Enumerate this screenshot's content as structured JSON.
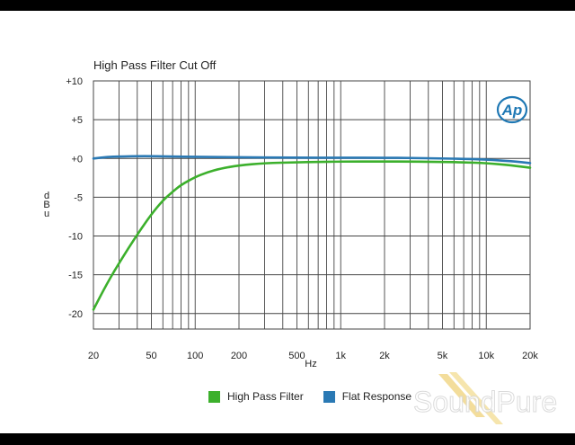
{
  "chart_data": {
    "type": "line",
    "title": "High Pass Filter Cut Off",
    "xlabel": "Hz",
    "ylabel": "dBu",
    "xscale": "log",
    "xlim": [
      20,
      20000
    ],
    "ylim": [
      -22,
      10
    ],
    "x_ticks": [
      {
        "value": 20,
        "label": "20"
      },
      {
        "value": 50,
        "label": "50"
      },
      {
        "value": 100,
        "label": "100"
      },
      {
        "value": 200,
        "label": "200"
      },
      {
        "value": 500,
        "label": "500"
      },
      {
        "value": 1000,
        "label": "1k"
      },
      {
        "value": 2000,
        "label": "2k"
      },
      {
        "value": 5000,
        "label": "5k"
      },
      {
        "value": 10000,
        "label": "10k"
      },
      {
        "value": 20000,
        "label": "20k"
      }
    ],
    "y_ticks": [
      {
        "value": 10,
        "label": "+10"
      },
      {
        "value": 5,
        "label": "+5"
      },
      {
        "value": 0,
        "label": "+0"
      },
      {
        "value": -5,
        "label": "-5"
      },
      {
        "value": -10,
        "label": "-10"
      },
      {
        "value": -15,
        "label": "-15"
      },
      {
        "value": -20,
        "label": "-20"
      }
    ],
    "grid": true,
    "legend_position": "bottom",
    "series": [
      {
        "name": "High Pass Filter",
        "color": "#3cb02c",
        "x": [
          20,
          25,
          30,
          40,
          50,
          60,
          70,
          80,
          100,
          120,
          150,
          200,
          300,
          500,
          700,
          1000,
          2000,
          3000,
          5000,
          7000,
          10000,
          15000,
          20000
        ],
        "y": [
          -19.5,
          -16.0,
          -13.5,
          -9.8,
          -7.2,
          -5.4,
          -4.3,
          -3.4,
          -2.4,
          -1.8,
          -1.3,
          -0.9,
          -0.6,
          -0.5,
          -0.45,
          -0.4,
          -0.4,
          -0.4,
          -0.45,
          -0.5,
          -0.6,
          -0.9,
          -1.2
        ]
      },
      {
        "name": "Flat Response",
        "color": "#2a79b4",
        "x": [
          20,
          25,
          30,
          40,
          50,
          70,
          100,
          200,
          500,
          1000,
          2000,
          3000,
          5000,
          7000,
          10000,
          15000,
          20000
        ],
        "y": [
          0.0,
          0.2,
          0.25,
          0.3,
          0.3,
          0.25,
          0.2,
          0.15,
          0.1,
          0.1,
          0.1,
          0.05,
          0.0,
          -0.05,
          -0.15,
          -0.35,
          -0.6
        ]
      }
    ]
  },
  "legend": [
    {
      "label": "High Pass Filter",
      "color": "#3cb02c"
    },
    {
      "label": "Flat Response",
      "color": "#2a79b4"
    }
  ],
  "logo_text": "Ap",
  "watermark_text": "SoundPure"
}
